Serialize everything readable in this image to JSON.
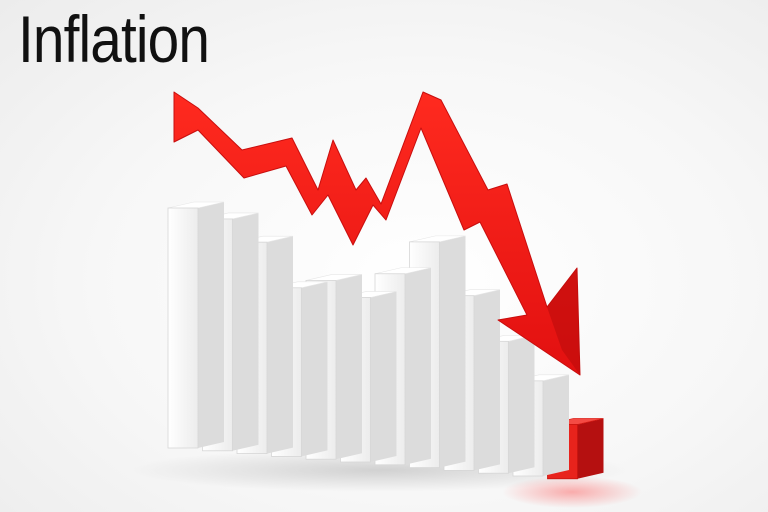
{
  "title": "Inflation",
  "colors": {
    "background": "#f2f2f2",
    "bar_front": "#f4f4f4",
    "bar_side": "#dcdcdc",
    "bar_top": "#ffffff",
    "last_bar": "#e8231c",
    "arrow": "#ee1c1c",
    "title_text": "#111111"
  },
  "illustration": {
    "bar_count": 12,
    "relative_bar_levels": [
      1.0,
      0.96,
      0.86,
      0.65,
      0.7,
      0.63,
      0.76,
      0.93,
      0.68,
      0.47,
      0.29,
      0.09
    ],
    "highlighted_bar": "last",
    "arrow_direction": "down-right"
  }
}
